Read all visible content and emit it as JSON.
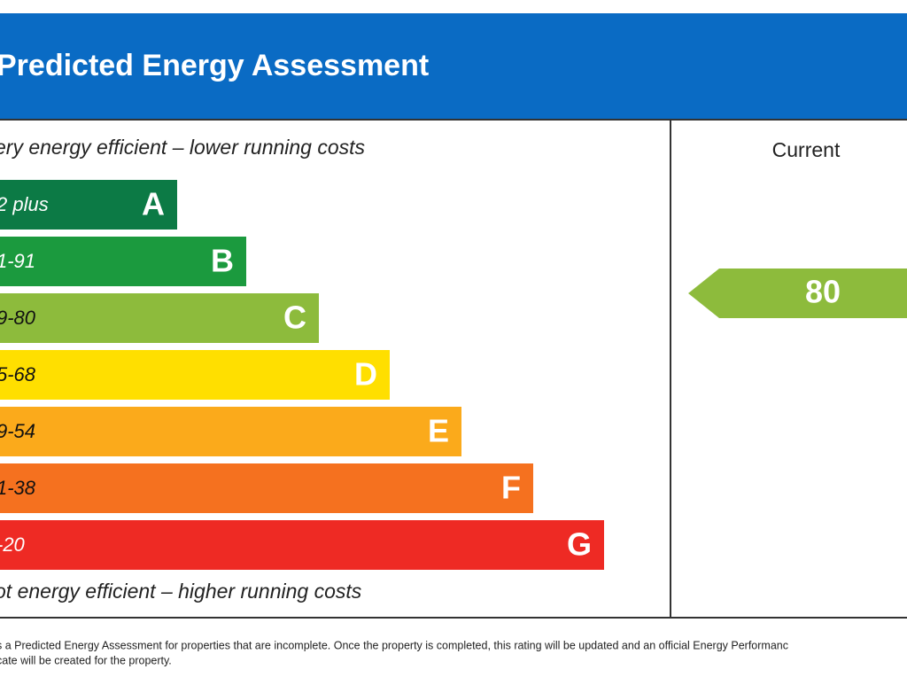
{
  "header": {
    "title": "Predicted Energy Assessment"
  },
  "top_note": "ery energy efficient – lower running costs",
  "bottom_note": "ot energy efficient – higher running costs",
  "bands": [
    {
      "range": "2 plus",
      "letter": "A"
    },
    {
      "range": "1-91",
      "letter": "B"
    },
    {
      "range": "9-80",
      "letter": "C"
    },
    {
      "range": "5-68",
      "letter": "D"
    },
    {
      "range": "9-54",
      "letter": "E"
    },
    {
      "range": "1-38",
      "letter": "F"
    },
    {
      "range": "-20",
      "letter": "G"
    }
  ],
  "current": {
    "label": "Current",
    "rating": 80
  },
  "footer": [
    "s a Predicted Energy Assessment for properties that are incomplete. Once the property is completed, this rating will be updated and an official Energy Performanc",
    "cate will be created for the property."
  ]
}
